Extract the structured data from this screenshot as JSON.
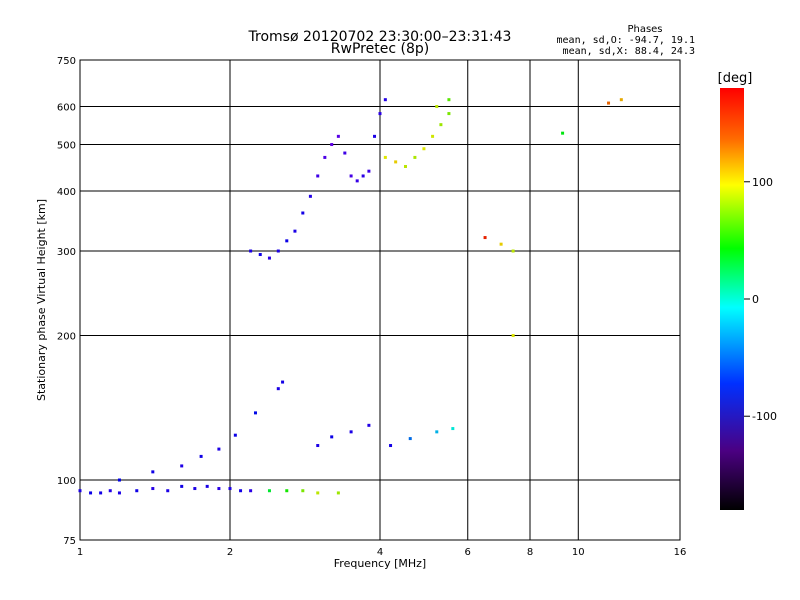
{
  "chart_data": {
    "type": "scatter",
    "title": "Tromsø 20120702 23:30:00–23:31:43",
    "subtitle": "RwPretec (8p)",
    "xlabel": "Frequency [MHz]",
    "ylabel": "Stationary phase Virtual Height [km]",
    "x_scale": "log",
    "y_scale": "log",
    "xlim": [
      1,
      16
    ],
    "ylim": [
      75,
      750
    ],
    "x_ticks": [
      1,
      2,
      4,
      6,
      8,
      10,
      16
    ],
    "y_ticks": [
      75,
      100,
      200,
      300,
      400,
      500,
      600,
      750
    ],
    "grid": true,
    "phases_header": "Phases",
    "phases_line1": "mean, sd,O:  -94.7, 19.1",
    "phases_line2": "mean, sd,X:  88.4, 24.3",
    "colorbar": {
      "label": "[deg]",
      "range": [
        -180,
        180
      ],
      "ticks": [
        100,
        0,
        -100
      ]
    },
    "series": [
      {
        "points": [
          [
            1.0,
            95,
            -100
          ],
          [
            1.05,
            94,
            -95
          ],
          [
            1.1,
            94,
            -98
          ],
          [
            1.15,
            95,
            -102
          ],
          [
            1.2,
            94,
            -100
          ],
          [
            1.3,
            95,
            -97
          ],
          [
            1.4,
            96,
            -103
          ],
          [
            1.5,
            95,
            -100
          ],
          [
            1.6,
            97,
            -96
          ],
          [
            1.7,
            96,
            -100
          ],
          [
            1.8,
            97,
            -99
          ],
          [
            1.9,
            96,
            -104
          ],
          [
            2.0,
            96,
            -101
          ],
          [
            2.1,
            95,
            -98
          ],
          [
            2.2,
            95,
            -105
          ],
          [
            1.2,
            100,
            -92
          ],
          [
            1.4,
            104,
            -97
          ],
          [
            1.6,
            107,
            -101
          ],
          [
            1.75,
            112,
            -96
          ],
          [
            1.9,
            116,
            -100
          ],
          [
            2.05,
            124,
            -95
          ],
          [
            2.25,
            138,
            -90
          ],
          [
            2.5,
            155,
            -100
          ],
          [
            2.55,
            160,
            -98
          ],
          [
            2.2,
            300,
            -100
          ],
          [
            2.3,
            295,
            -96
          ],
          [
            2.4,
            290,
            -105
          ],
          [
            2.5,
            300,
            -100
          ],
          [
            2.6,
            315,
            -95
          ],
          [
            2.7,
            330,
            -100
          ],
          [
            2.8,
            360,
            -98
          ],
          [
            2.9,
            390,
            -102
          ],
          [
            3.0,
            430,
            -110
          ],
          [
            3.1,
            470,
            -115
          ],
          [
            3.2,
            500,
            -120
          ],
          [
            3.3,
            520,
            -118
          ],
          [
            3.4,
            480,
            -110
          ],
          [
            3.5,
            430,
            -112
          ],
          [
            3.6,
            420,
            -108
          ],
          [
            3.7,
            430,
            -104
          ],
          [
            3.8,
            440,
            -110
          ],
          [
            3.9,
            520,
            -100
          ],
          [
            4.0,
            580,
            -105
          ],
          [
            4.1,
            620,
            -102
          ],
          [
            3.0,
            118,
            -100
          ],
          [
            3.2,
            123,
            -95
          ],
          [
            3.5,
            126,
            -100
          ],
          [
            3.8,
            130,
            -102
          ],
          [
            4.2,
            118,
            -98
          ],
          [
            4.6,
            122,
            -60
          ],
          [
            5.2,
            126,
            -40
          ],
          [
            5.6,
            128,
            -20
          ]
        ]
      },
      {
        "points": [
          [
            2.4,
            95,
            30
          ],
          [
            2.6,
            95,
            50
          ],
          [
            2.8,
            95,
            80
          ],
          [
            3.0,
            94,
            100
          ],
          [
            3.3,
            94,
            90
          ],
          [
            4.1,
            470,
            110
          ],
          [
            4.3,
            460,
            120
          ],
          [
            4.5,
            450,
            100
          ],
          [
            4.7,
            470,
            95
          ],
          [
            4.9,
            490,
            110
          ],
          [
            5.1,
            520,
            105
          ],
          [
            5.3,
            550,
            90
          ],
          [
            5.5,
            580,
            80
          ],
          [
            5.2,
            600,
            100
          ],
          [
            5.5,
            620,
            70
          ],
          [
            6.5,
            320,
            170
          ],
          [
            7.0,
            310,
            120
          ],
          [
            7.4,
            300,
            100
          ],
          [
            7.4,
            200,
            110
          ],
          [
            9.3,
            528,
            40
          ],
          [
            11.5,
            610,
            150
          ],
          [
            12.2,
            620,
            130
          ]
        ]
      }
    ]
  }
}
